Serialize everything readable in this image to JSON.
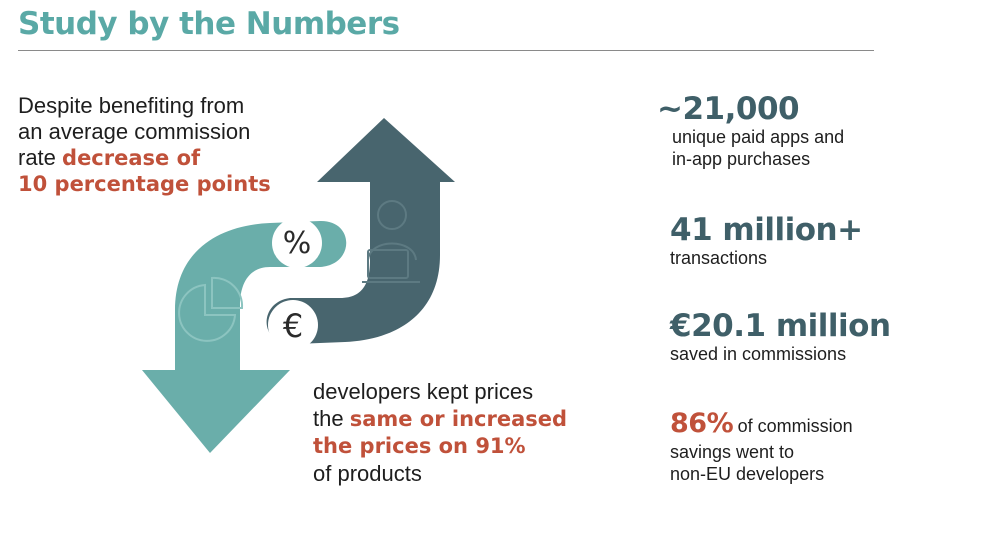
{
  "title": "Study by the Numbers",
  "commission": {
    "line1": "Despite benefiting from",
    "line2": "an average commission",
    "line3_prefix": "rate ",
    "highlight1": "decrease of",
    "highlight2": "10 percentage points"
  },
  "prices": {
    "line1": "developers kept prices",
    "line2_prefix": "the ",
    "highlight1": "same or increased",
    "highlight2": "the prices on 91%",
    "line4": "of products"
  },
  "graphic": {
    "percent_symbol": "%",
    "euro_symbol": "€",
    "icons": [
      "percent-icon",
      "euro-icon",
      "person-laptop-icon",
      "pie-chart-icon",
      "arrow-up-icon",
      "arrow-down-icon"
    ],
    "colors": {
      "teal": "#6aaeaa",
      "slate": "#48656e",
      "accent": "#c0513a"
    }
  },
  "stats": [
    {
      "value": "~21,000",
      "desc_lines": [
        "unique paid apps and",
        "in-app purchases"
      ]
    },
    {
      "value": "41 million+",
      "desc_lines": [
        "transactions"
      ]
    },
    {
      "value": "€20.1 million",
      "desc_lines": [
        "saved in commissions"
      ]
    },
    {
      "value": "86%",
      "desc_inline": "of commission",
      "desc_lines": [
        "savings went to",
        "non-EU developers"
      ]
    }
  ]
}
